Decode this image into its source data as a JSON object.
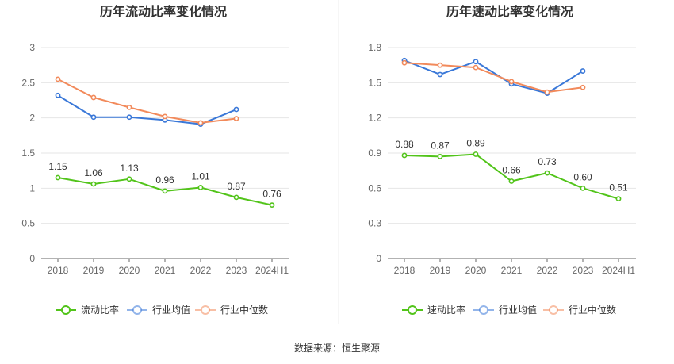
{
  "source_label": "数据来源：恒生聚源",
  "colors": {
    "green": "#52c41a",
    "blue": "#3a78d8",
    "orange": "#f28a5b",
    "grid": "#e6e6e6",
    "axis": "#666666"
  },
  "chart_data": [
    {
      "type": "line",
      "title": "历年流动比率变化情况",
      "categories": [
        "2018",
        "2019",
        "2020",
        "2021",
        "2022",
        "2023",
        "2024H1"
      ],
      "ylim": [
        0,
        3
      ],
      "yticks": [
        "0",
        "0.5",
        "1",
        "1.5",
        "2",
        "2.5",
        "3"
      ],
      "ytick_values": [
        0,
        0.5,
        1,
        1.5,
        2,
        2.5,
        3
      ],
      "grid": true,
      "legend_position": "bottom",
      "series": [
        {
          "name": "流动比率",
          "color": "#52c41a",
          "values": [
            1.15,
            1.06,
            1.13,
            0.96,
            1.01,
            0.87,
            0.76
          ],
          "labels": [
            "1.15",
            "1.06",
            "1.13",
            "0.96",
            "1.01",
            "0.87",
            "0.76"
          ]
        },
        {
          "name": "行业均值",
          "color": "#3a78d8",
          "values": [
            2.32,
            2.01,
            2.01,
            1.97,
            1.91,
            2.12,
            null
          ]
        },
        {
          "name": "行业中位数",
          "color": "#f28a5b",
          "values": [
            2.55,
            2.29,
            2.15,
            2.02,
            1.93,
            1.99,
            null
          ]
        }
      ]
    },
    {
      "type": "line",
      "title": "历年速动比率变化情况",
      "categories": [
        "2018",
        "2019",
        "2020",
        "2021",
        "2022",
        "2023",
        "2024H1"
      ],
      "ylim": [
        0,
        1.8
      ],
      "yticks": [
        "0",
        "0.3",
        "0.6",
        "0.9",
        "1.2",
        "1.5",
        "1.8"
      ],
      "ytick_values": [
        0,
        0.3,
        0.6,
        0.9,
        1.2,
        1.5,
        1.8
      ],
      "grid": true,
      "legend_position": "bottom",
      "series": [
        {
          "name": "速动比率",
          "color": "#52c41a",
          "values": [
            0.88,
            0.87,
            0.89,
            0.66,
            0.73,
            0.6,
            0.51
          ],
          "labels": [
            "0.88",
            "0.87",
            "0.89",
            "0.66",
            "0.73",
            "0.60",
            "0.51"
          ]
        },
        {
          "name": "行业均值",
          "color": "#3a78d8",
          "values": [
            1.69,
            1.57,
            1.68,
            1.49,
            1.41,
            1.6,
            null
          ]
        },
        {
          "name": "行业中位数",
          "color": "#f28a5b",
          "values": [
            1.67,
            1.65,
            1.63,
            1.51,
            1.42,
            1.46,
            null
          ]
        }
      ]
    }
  ]
}
